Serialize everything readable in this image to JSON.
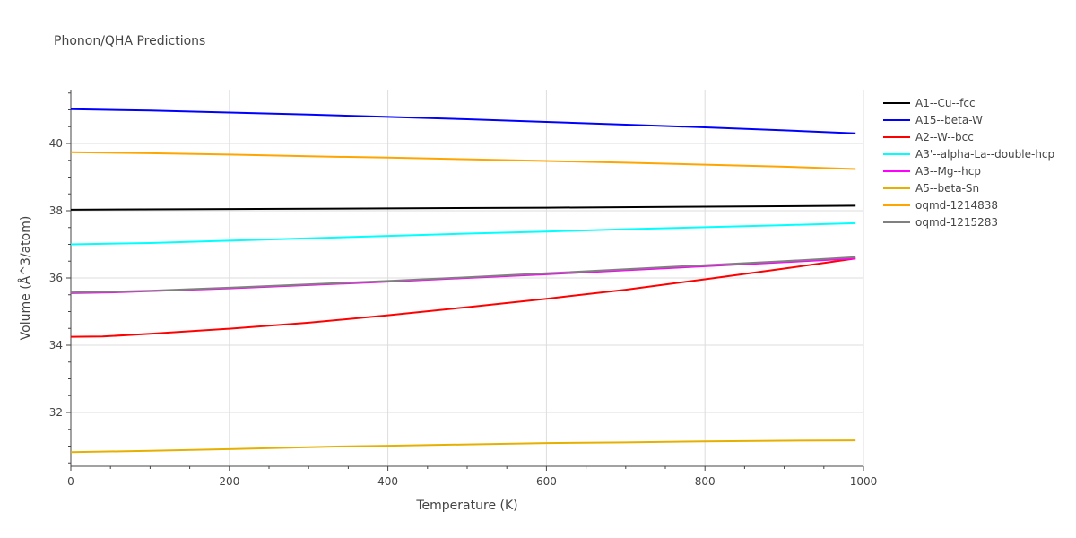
{
  "chart_data": {
    "type": "line",
    "title": "Phonon/QHA Predictions",
    "xlabel": "Temperature (K)",
    "ylabel": "Volume (Å^3/atom)",
    "xlim": [
      0,
      1000
    ],
    "ylim": [
      30.4,
      41.6
    ],
    "xticks": [
      0,
      200,
      400,
      600,
      800,
      1000
    ],
    "yticks": [
      32,
      34,
      36,
      38,
      40
    ],
    "grid": true,
    "legend_position": "right",
    "series": [
      {
        "name": "A1--Cu--fcc",
        "color": "#000000",
        "x": [
          0,
          200,
          400,
          600,
          800,
          990
        ],
        "y": [
          38.03,
          38.05,
          38.07,
          38.09,
          38.12,
          38.15
        ]
      },
      {
        "name": "A15--beta-W",
        "color": "#0000ff",
        "x": [
          0,
          100,
          200,
          300,
          400,
          500,
          600,
          700,
          800,
          900,
          990
        ],
        "y": [
          41.02,
          40.98,
          40.92,
          40.86,
          40.79,
          40.72,
          40.64,
          40.56,
          40.48,
          40.39,
          40.3
        ]
      },
      {
        "name": "A2--W--bcc",
        "color": "#ff0000",
        "x": [
          0,
          40,
          100,
          200,
          300,
          400,
          500,
          600,
          700,
          800,
          900,
          990
        ],
        "y": [
          34.25,
          34.26,
          34.34,
          34.49,
          34.67,
          34.89,
          35.13,
          35.38,
          35.65,
          35.96,
          36.28,
          36.58
        ]
      },
      {
        "name": "A3'--alpha-La--double-hcp",
        "color": "#00ffff",
        "x": [
          0,
          100,
          200,
          300,
          400,
          500,
          600,
          700,
          800,
          900,
          990
        ],
        "y": [
          37.0,
          37.04,
          37.11,
          37.18,
          37.25,
          37.32,
          37.38,
          37.45,
          37.51,
          37.57,
          37.63
        ]
      },
      {
        "name": "A3--Mg--hcp",
        "color": "#ff00ff",
        "x": [
          0,
          50,
          100,
          200,
          300,
          400,
          500,
          600,
          700,
          800,
          900,
          990
        ],
        "y": [
          35.55,
          35.57,
          35.61,
          35.69,
          35.79,
          35.89,
          36.0,
          36.11,
          36.23,
          36.35,
          36.47,
          36.58
        ]
      },
      {
        "name": "A5--beta-Sn",
        "color": "#e6b000",
        "x": [
          0,
          100,
          200,
          340,
          400,
          500,
          600,
          700,
          800,
          900,
          990
        ],
        "y": [
          30.82,
          30.86,
          30.91,
          30.99,
          31.01,
          31.05,
          31.09,
          31.11,
          31.14,
          31.16,
          31.17
        ]
      },
      {
        "name": "oqmd-1214838",
        "color": "#ffa500",
        "x": [
          0,
          100,
          200,
          300,
          400,
          500,
          600,
          700,
          800,
          900,
          990
        ],
        "y": [
          39.74,
          39.71,
          39.67,
          39.62,
          39.58,
          39.53,
          39.48,
          39.43,
          39.37,
          39.31,
          39.24
        ]
      },
      {
        "name": "oqmd-1215283",
        "color": "#808080",
        "x": [
          0,
          50,
          100,
          200,
          300,
          400,
          500,
          600,
          700,
          800,
          900,
          990
        ],
        "y": [
          35.57,
          35.59,
          35.62,
          35.71,
          35.81,
          35.91,
          36.02,
          36.14,
          36.26,
          36.38,
          36.5,
          36.62
        ]
      }
    ]
  }
}
